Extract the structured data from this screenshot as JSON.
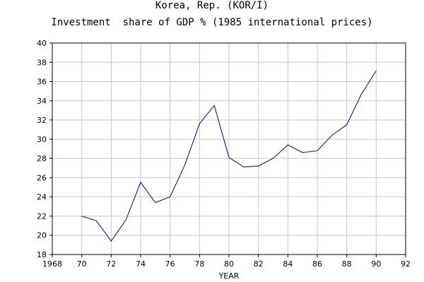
{
  "chart_data": {
    "type": "line",
    "title": "Korea, Rep. (KOR/I)",
    "subtitle": "Investment  share of GDP % (1985 international prices)",
    "xlabel": "YEAR",
    "ylabel": "",
    "xlim": [
      1968,
      1992
    ],
    "ylim": [
      18,
      40
    ],
    "x_ticks": [
      1968,
      1970,
      1972,
      1974,
      1976,
      1978,
      1980,
      1982,
      1984,
      1986,
      1988,
      1990,
      1992
    ],
    "x_tick_labels": [
      "1968",
      "70",
      "72",
      "74",
      "76",
      "78",
      "80",
      "82",
      "84",
      "86",
      "88",
      "90",
      "92"
    ],
    "y_ticks": [
      18,
      20,
      22,
      24,
      26,
      28,
      30,
      32,
      34,
      36,
      38,
      40
    ],
    "grid": true,
    "line_color": "#000080",
    "series": [
      {
        "x": [
          1970,
          1971,
          1972,
          1973,
          1974,
          1975,
          1976,
          1977,
          1978,
          1979,
          1980,
          1981,
          1982,
          1983,
          1984,
          1985,
          1986,
          1987,
          1988,
          1989,
          1990
        ],
        "values": [
          22.0,
          21.5,
          19.4,
          21.6,
          25.5,
          23.4,
          24.0,
          27.3,
          31.6,
          33.5,
          28.1,
          27.1,
          27.2,
          28.0,
          29.4,
          28.6,
          28.8,
          30.4,
          31.5,
          34.7,
          37.1
        ]
      }
    ]
  }
}
